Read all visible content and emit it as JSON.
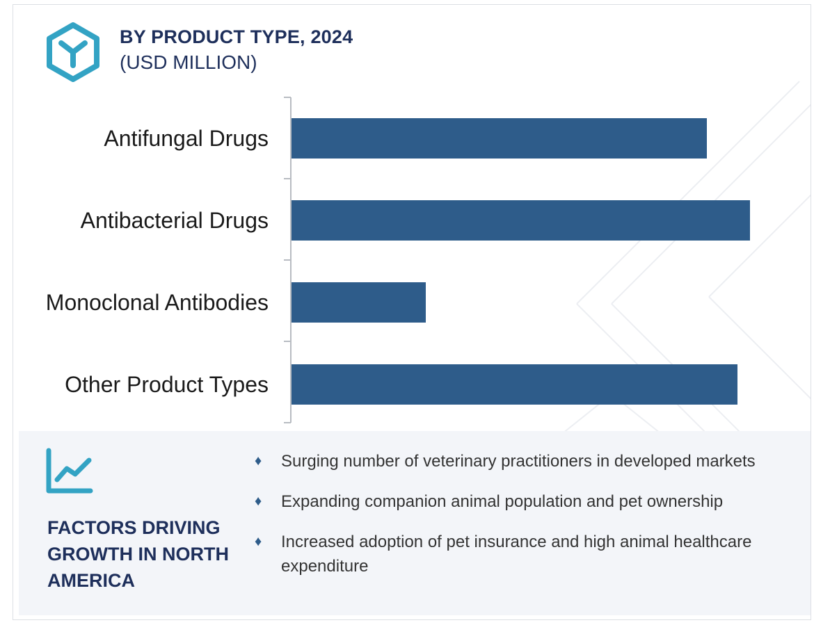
{
  "header": {
    "title": "BY PRODUCT TYPE, 2024",
    "subtitle": "(USD MILLION)"
  },
  "colors": {
    "bar": "#2e5c8a",
    "title": "#1e2f5b",
    "icon": "#33a3c4",
    "panel_bg": "#f3f5f9"
  },
  "chart_data": {
    "type": "bar",
    "orientation": "horizontal",
    "title": "",
    "xlabel": "",
    "ylabel": "",
    "categories": [
      "Antifungal Drugs",
      "Antibacterial Drugs",
      "Monoclonal Antibodies",
      "Other Product Types"
    ],
    "values": [
      597,
      659,
      193,
      641
    ],
    "xlim": [
      0,
      720
    ],
    "grid": false,
    "legend": "none"
  },
  "factors": {
    "title": "FACTORS DRIVING GROWTH IN NORTH AMERICA",
    "items": [
      "Surging number of veterinary practitioners in developed markets",
      "Expanding companion animal population and pet ownership",
      "Increased adoption of pet insurance and high animal healthcare expenditure"
    ]
  }
}
